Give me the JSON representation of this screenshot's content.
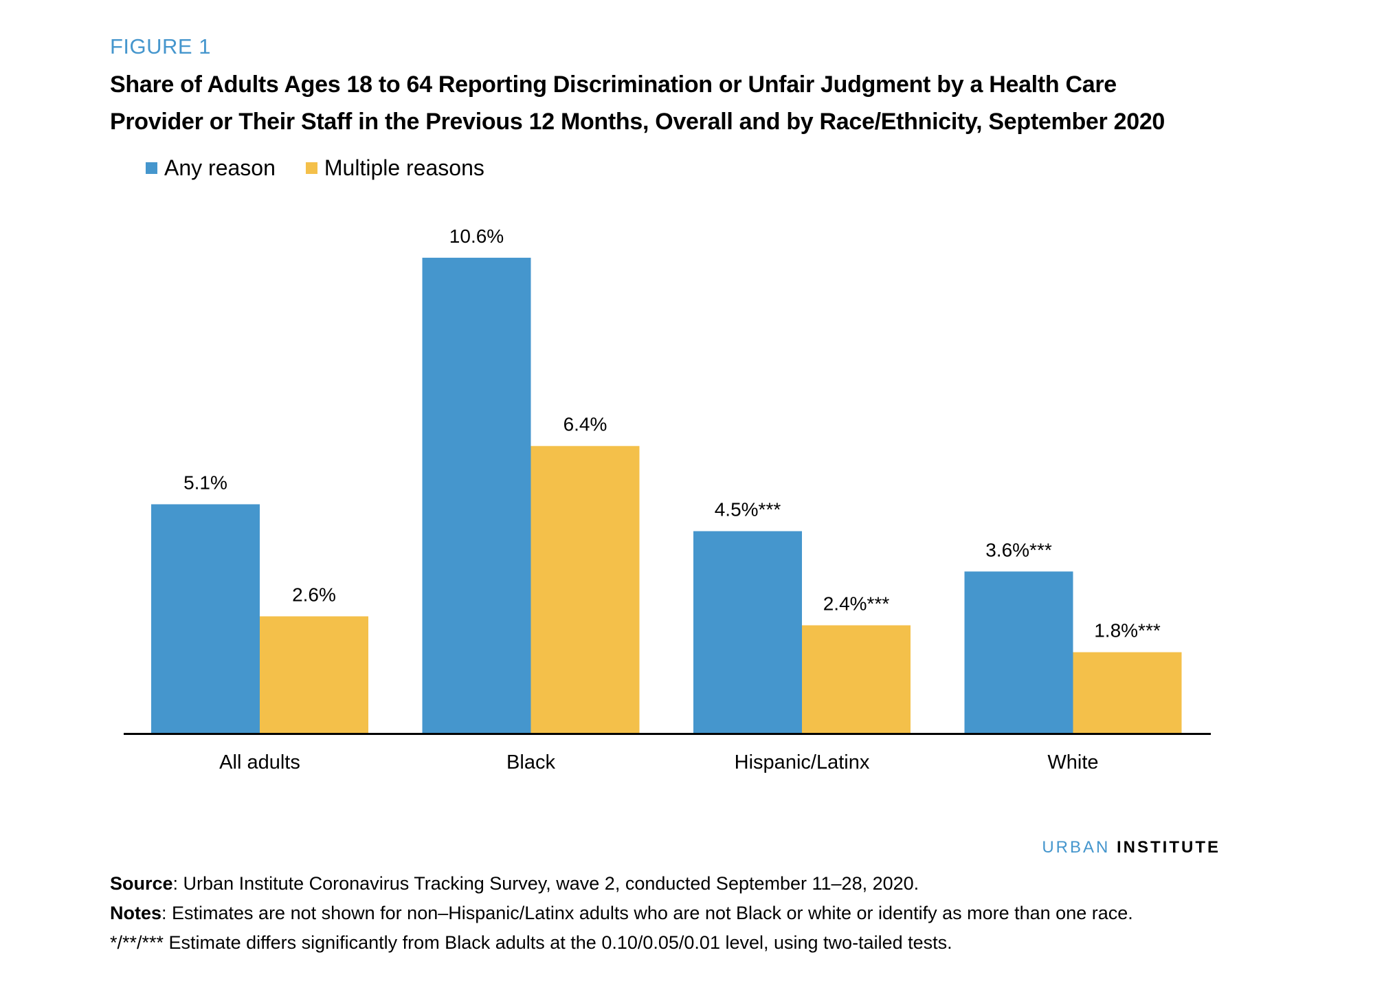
{
  "figure": {
    "label": "FIGURE 1",
    "title_line1": "Share of Adults Ages 18 to 64 Reporting Discrimination or Unfair Judgment by a Health Care",
    "title_line2": "Provider or Their Staff in the Previous 12 Months, Overall and by Race/Ethnicity, September 2020"
  },
  "colors": {
    "any_reason": "#4596cd",
    "multiple_reasons": "#f4c04a",
    "axis": "#000000",
    "accent": "#4596cd"
  },
  "chart_data": {
    "type": "bar",
    "title": "Share of Adults Ages 18 to 64 Reporting Discrimination or Unfair Judgment by a Health Care Provider or Their Staff in the Previous 12 Months, Overall and by Race/Ethnicity, September 2020",
    "xlabel": "",
    "ylabel": "",
    "ylim": [
      0,
      12
    ],
    "grid": false,
    "legend_position": "top-left",
    "categories": [
      "All adults",
      "Black",
      "Hispanic/Latinx",
      "White"
    ],
    "series": [
      {
        "name": "Any reason",
        "values": [
          5.1,
          10.6,
          4.5,
          3.6
        ],
        "labels": [
          "5.1%",
          "10.6%",
          "4.5%***",
          "3.6%***"
        ]
      },
      {
        "name": "Multiple reasons",
        "values": [
          2.6,
          6.4,
          2.4,
          1.8
        ],
        "labels": [
          "2.6%",
          "6.4%",
          "2.4%***",
          "1.8%***"
        ]
      }
    ]
  },
  "branding": {
    "org_part1": "URBAN",
    "org_part2": "INSTITUTE"
  },
  "footnotes": {
    "source_label": "Source",
    "source_text": ": Urban Institute Coronavirus Tracking Survey, wave 2, conducted September 11–28, 2020.",
    "notes_label": "Notes",
    "notes_text": ": Estimates are not shown for non–Hispanic/Latinx adults who are not Black or white or identify as more than one race.",
    "significance_text": "*/**/*** Estimate differs significantly from Black adults at the 0.10/0.05/0.01 level, using two-tailed tests."
  }
}
